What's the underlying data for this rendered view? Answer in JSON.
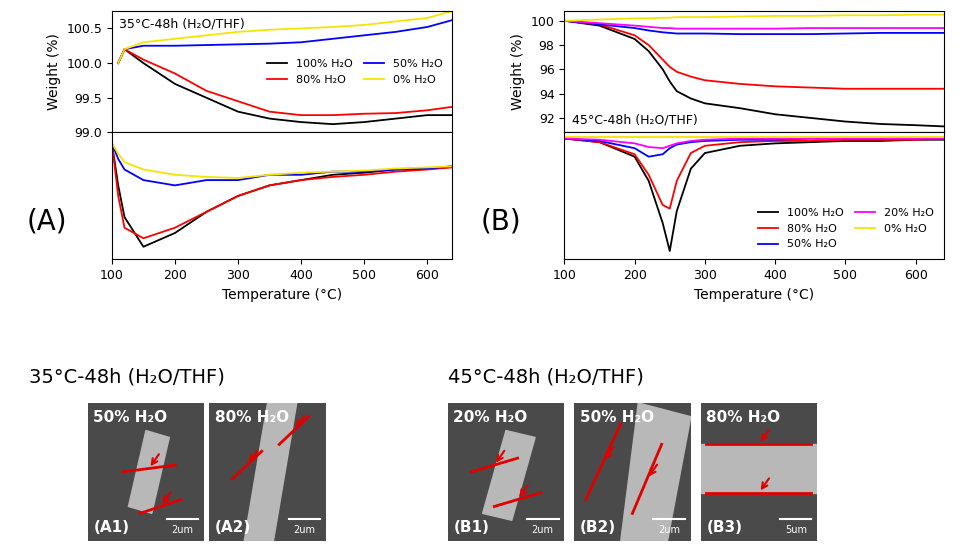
{
  "chart_data": [
    {
      "type": "line",
      "ylabel": "Weight (%)",
      "annotations": [
        "35°C-48h (H₂O/THF)"
      ],
      "x": [
        100,
        110,
        120,
        150,
        200,
        250,
        300,
        350,
        400,
        450,
        500,
        550,
        600,
        640
      ],
      "xlim": [
        100,
        640
      ],
      "ylim": [
        99.0,
        100.75
      ],
      "yticks": [
        99.0,
        99.5,
        100.0,
        100.5
      ],
      "tick_labels": "y",
      "legend": "center right",
      "series": [
        {
          "name": "100% H₂O",
          "color": "#000000",
          "values": [
            null,
            100.0,
            100.2,
            100.0,
            99.7,
            99.5,
            99.3,
            99.2,
            99.15,
            99.12,
            99.15,
            99.2,
            99.25,
            99.25
          ]
        },
        {
          "name": "80% H₂O",
          "color": "#ff0000",
          "values": [
            null,
            100.0,
            100.2,
            100.05,
            99.85,
            99.6,
            99.45,
            99.3,
            99.25,
            99.25,
            99.27,
            99.28,
            99.32,
            99.37
          ]
        },
        {
          "name": "50% H₂O",
          "color": "#0000ff",
          "values": [
            null,
            100.0,
            100.2,
            100.25,
            100.25,
            100.26,
            100.27,
            100.28,
            100.3,
            100.35,
            100.4,
            100.45,
            100.52,
            100.62
          ]
        },
        {
          "name": "0% H₂O",
          "color": "#f5e400",
          "values": [
            null,
            100.0,
            100.2,
            100.3,
            100.35,
            100.4,
            100.45,
            100.48,
            100.5,
            100.52,
            100.55,
            100.6,
            100.65,
            100.75
          ]
        }
      ]
    },
    {
      "type": "line",
      "xlabel": "Temperature (°C)",
      "annotations": [
        "(A)"
      ],
      "x": [
        100,
        110,
        120,
        150,
        200,
        250,
        300,
        350,
        400,
        450,
        500,
        550,
        600,
        640
      ],
      "xlim": [
        100,
        640
      ],
      "xticks": [
        100,
        200,
        300,
        400,
        500,
        600
      ],
      "ylim": [
        -11,
        1
      ],
      "tick_labels": "x",
      "series": [
        {
          "color": "#000000",
          "values": [
            0,
            -4,
            -7,
            -9.8,
            -8.5,
            -6.5,
            -5,
            -4,
            -3.5,
            -3,
            -2.8,
            -2.5,
            -2.4,
            -2.2
          ]
        },
        {
          "color": "#ff0000",
          "values": [
            0,
            -5,
            -8,
            -9,
            -8,
            -6.5,
            -5,
            -4,
            -3.5,
            -3.2,
            -3,
            -2.7,
            -2.5,
            -2.3
          ]
        },
        {
          "color": "#0000ff",
          "values": [
            0,
            -1.5,
            -2.5,
            -3.5,
            -4,
            -3.5,
            -3.5,
            -3,
            -3,
            -2.7,
            -2.7,
            -2.5,
            -2.4,
            -2.2
          ]
        },
        {
          "color": "#f5e400",
          "values": [
            0,
            -1,
            -1.8,
            -2.5,
            -3,
            -3.2,
            -3.3,
            -3,
            -2.8,
            -2.7,
            -2.6,
            -2.4,
            -2.3,
            -2.2
          ]
        }
      ]
    },
    {
      "type": "line",
      "ylabel": "Weight (%)",
      "annotations": [
        "45°C-48h (H₂O/THF)"
      ],
      "x": [
        100,
        150,
        200,
        220,
        240,
        250,
        260,
        280,
        300,
        350,
        400,
        450,
        500,
        550,
        600,
        640
      ],
      "xlim": [
        100,
        640
      ],
      "ylim": [
        90.8,
        100.8
      ],
      "yticks": [
        92,
        94,
        96,
        98,
        100
      ],
      "tick_labels": "y",
      "series": [
        {
          "color": "#000000",
          "values": [
            100.0,
            99.6,
            98.5,
            97.5,
            96.0,
            95.0,
            94.2,
            93.6,
            93.2,
            92.8,
            92.3,
            92.0,
            91.7,
            91.5,
            91.4,
            91.3
          ]
        },
        {
          "color": "#ff0000",
          "values": [
            100.0,
            99.7,
            98.8,
            98.0,
            96.8,
            96.2,
            95.8,
            95.4,
            95.1,
            94.8,
            94.6,
            94.5,
            94.4,
            94.4,
            94.4,
            94.4
          ]
        },
        {
          "color": "#0000ff",
          "values": [
            100.0,
            99.7,
            99.4,
            99.2,
            99.05,
            99.0,
            98.95,
            98.95,
            98.95,
            98.9,
            98.9,
            98.9,
            98.95,
            99.0,
            99.0,
            99.0
          ]
        },
        {
          "color": "#ff00ff",
          "values": [
            100.0,
            99.8,
            99.6,
            99.5,
            99.4,
            99.4,
            99.35,
            99.35,
            99.35,
            99.35,
            99.35,
            99.4,
            99.4,
            99.4,
            99.4,
            99.4
          ]
        },
        {
          "color": "#f5e400",
          "values": [
            100.0,
            100.1,
            100.2,
            100.2,
            100.25,
            100.25,
            100.3,
            100.3,
            100.3,
            100.35,
            100.4,
            100.4,
            100.45,
            100.45,
            100.5,
            100.5
          ]
        }
      ]
    },
    {
      "type": "line",
      "xlabel": "Temperature (°C)",
      "annotations": [
        "(B)"
      ],
      "x": [
        100,
        150,
        200,
        220,
        240,
        250,
        260,
        280,
        300,
        350,
        400,
        450,
        500,
        550,
        600,
        640
      ],
      "xlim": [
        100,
        640
      ],
      "xticks": [
        100,
        200,
        300,
        400,
        500,
        600
      ],
      "ylim": [
        -10,
        0.5
      ],
      "tick_labels": "x",
      "legend": "lower right",
      "series": [
        {
          "name": "100% H₂O",
          "color": "#000000",
          "values": [
            0,
            -0.3,
            -1.5,
            -3.5,
            -7,
            -9.3,
            -6,
            -2.5,
            -1.2,
            -0.6,
            -0.4,
            -0.3,
            -0.2,
            -0.2,
            -0.1,
            -0.1
          ]
        },
        {
          "name": "80% H₂O",
          "color": "#ff0000",
          "values": [
            0,
            -0.3,
            -1.3,
            -3,
            -5.5,
            -5.8,
            -3.5,
            -1.2,
            -0.6,
            -0.3,
            -0.2,
            -0.2,
            -0.1,
            -0.1,
            -0.1,
            0
          ]
        },
        {
          "name": "50% H₂O",
          "color": "#0000ff",
          "values": [
            0,
            -0.2,
            -0.8,
            -1.5,
            -1.3,
            -0.8,
            -0.5,
            -0.3,
            -0.2,
            -0.1,
            -0.1,
            0,
            0,
            0,
            0,
            0
          ]
        },
        {
          "name": "20% H₂O",
          "color": "#ff00ff",
          "values": [
            0,
            -0.1,
            -0.4,
            -0.7,
            -0.8,
            -0.6,
            -0.4,
            -0.2,
            -0.1,
            0,
            0,
            0,
            0,
            0,
            0,
            0
          ]
        },
        {
          "name": "0% H₂O",
          "color": "#f5e400",
          "values": [
            0.1,
            0.1,
            0.1,
            0.1,
            0.1,
            0.1,
            0.1,
            0.1,
            0.1,
            0.1,
            0.1,
            0.1,
            0.1,
            0.1,
            0.1,
            0.1
          ]
        }
      ]
    }
  ],
  "sem_images": [
    {
      "title": "35°C-48h (H₂O/THF)",
      "images": [
        {
          "label": "50% H₂O",
          "tag": "(A1)",
          "scale_bar": "2um"
        },
        {
          "label": "80% H₂O",
          "tag": "(A2)",
          "scale_bar": "2um"
        }
      ]
    },
    {
      "title": "45°C-48h (H₂O/THF)",
      "images": [
        {
          "label": "20% H₂O",
          "tag": "(B1)",
          "scale_bar": "2um"
        },
        {
          "label": "50% H₂O",
          "tag": "(B2)",
          "scale_bar": "2um"
        },
        {
          "label": "80% H₂O",
          "tag": "(B3)",
          "scale_bar": "5um"
        }
      ]
    }
  ]
}
